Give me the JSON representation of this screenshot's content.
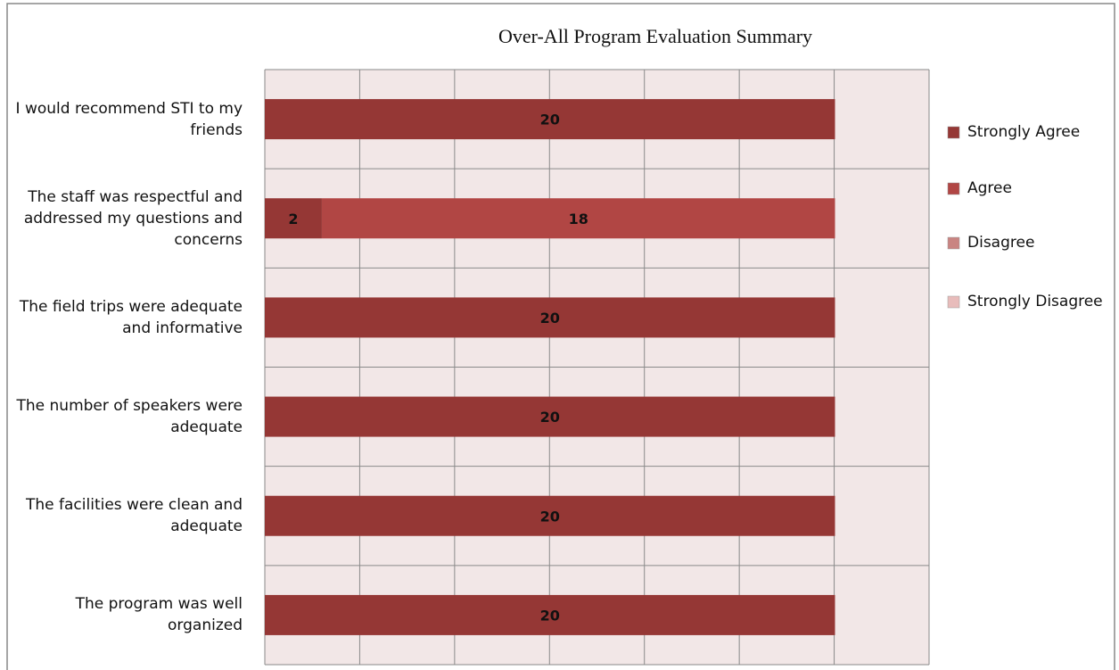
{
  "chart_data": {
    "type": "stacked-bar-horizontal",
    "title": "Over-All Program Evaluation Summary",
    "categories": [
      "I would recommend STI to my friends",
      "The staff was respectful and addressed my questions and concerns",
      "The field trips were adequate and informative",
      "The number of speakers were adequate",
      "The facilities were clean and adequate",
      "The program was well organized"
    ],
    "series": [
      {
        "name": "Strongly Agree",
        "color": "#953735",
        "values": [
          20,
          2,
          20,
          20,
          20,
          20
        ]
      },
      {
        "name": "Agree",
        "color": "#b14644",
        "values": [
          0,
          18,
          0,
          0,
          0,
          0
        ]
      },
      {
        "name": "Disagree",
        "color": "#c98482",
        "values": [
          0,
          0,
          0,
          0,
          0,
          0
        ]
      },
      {
        "name": "Strongly Disagree",
        "color": "#e8bcbb",
        "values": [
          0,
          0,
          0,
          0,
          0,
          0
        ]
      }
    ],
    "xlim": [
      0,
      23.3
    ],
    "grid": true,
    "legend": "right"
  }
}
